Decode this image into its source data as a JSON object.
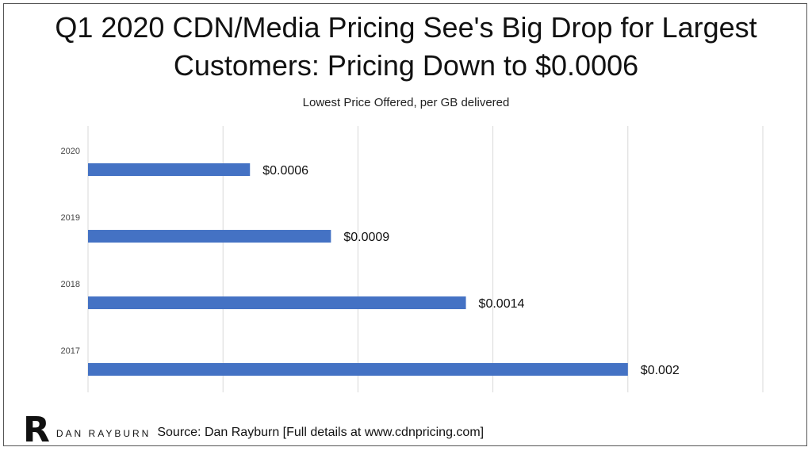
{
  "title_line1": "Q1 2020 CDN/Media Pricing See's Big Drop for Largest",
  "title_line2": "Customers: Pricing Down to $0.0006",
  "footer": {
    "logo_letter": "R",
    "logo_name": "DAN RAYBURN",
    "source": "Source: Dan Rayburn [Full details at www.cdnpricing.com]"
  },
  "chart_data": {
    "type": "bar",
    "orientation": "horizontal",
    "title": "Lowest Price Offered, per GB delivered",
    "categories": [
      "2020",
      "2019",
      "2018",
      "2017"
    ],
    "values": [
      0.0006,
      0.0009,
      0.0014,
      0.002
    ],
    "data_labels": [
      "$0.0006",
      "$0.0009",
      "$0.0014",
      "$0.002"
    ],
    "xlim": [
      0,
      0.0025
    ],
    "grid": true,
    "legend": "none",
    "bar_color": "#4472C4",
    "gridline_color": "#D9D9D9"
  }
}
